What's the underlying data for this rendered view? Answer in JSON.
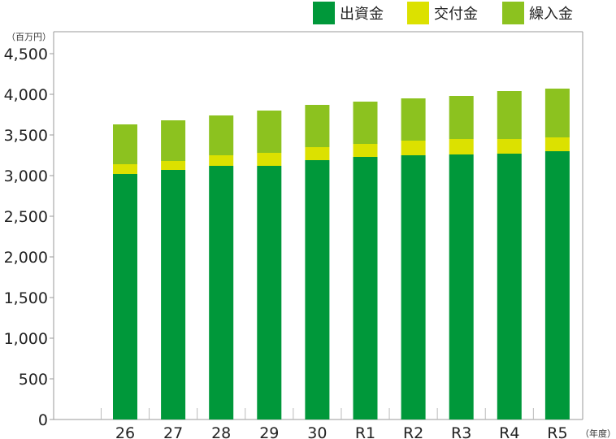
{
  "chart_data": {
    "type": "bar",
    "stacked": true,
    "categories": [
      "26",
      "27",
      "28",
      "29",
      "30",
      "R1",
      "R2",
      "R3",
      "R4",
      "R5"
    ],
    "series": [
      {
        "name": "出資金",
        "color": "#00983a",
        "values": [
          3020,
          3070,
          3120,
          3120,
          3190,
          3230,
          3250,
          3260,
          3270,
          3300
        ]
      },
      {
        "name": "交付金",
        "color": "#dce100",
        "values": [
          120,
          110,
          130,
          160,
          160,
          160,
          180,
          190,
          180,
          170
        ]
      },
      {
        "name": "繰入金",
        "color": "#8cc21f",
        "values": [
          490,
          500,
          490,
          520,
          520,
          520,
          520,
          530,
          590,
          600
        ]
      }
    ],
    "yticks": [
      "0",
      "500",
      "1,000",
      "1,500",
      "2,000",
      "2,500",
      "3,000",
      "3,500",
      "4,000",
      "4,500"
    ],
    "ylim": [
      0,
      5000
    ],
    "y_unit": "（百万円）",
    "x_unit": "（年度）",
    "legend_position": "top-right",
    "grid": false,
    "title": ""
  }
}
